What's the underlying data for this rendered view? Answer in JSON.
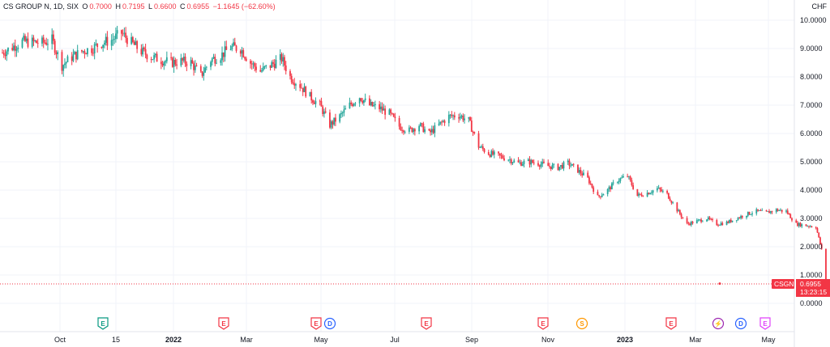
{
  "header": {
    "symbol": "CS GROUP N, 1D, SIX",
    "o_label": "O",
    "o_value": "0.7000",
    "h_label": "H",
    "h_value": "0.7195",
    "l_label": "L",
    "l_value": "0.6600",
    "c_label": "C",
    "c_value": "0.6955",
    "change": "−1.1645 (−62.60%)",
    "currency": "CHF"
  },
  "colors": {
    "up": "#26a69a",
    "down": "#f23645",
    "grid": "#f0f3fa",
    "axis": "#e0e3eb"
  },
  "last_price": {
    "ticker": "CSGN",
    "value": "0.6955",
    "countdown": "13:23:15"
  },
  "chart_data": {
    "type": "candlestick",
    "y_ticks": [
      "10.0000",
      "9.0000",
      "8.0000",
      "7.0000",
      "6.0000",
      "5.0000",
      "4.0000",
      "3.0000",
      "2.0000",
      "1.0000",
      "0.0000"
    ],
    "ylim": [
      0,
      10
    ],
    "x_ticks": [
      "Oct",
      "15",
      "2022",
      "Mar",
      "May",
      "Jul",
      "Sep",
      "Nov",
      "2023",
      "Mar",
      "May"
    ],
    "x_ticks_bold": [
      "2022",
      "2023"
    ],
    "grid": true,
    "price_path": [
      [
        "2021-08-16",
        8.85
      ],
      [
        "2021-08-23",
        9.05
      ],
      [
        "2021-08-30",
        9.25
      ],
      [
        "2021-09-13",
        9.2
      ],
      [
        "2021-09-20",
        9.3
      ],
      [
        "2021-09-27",
        8.4
      ],
      [
        "2021-10-04",
        8.7
      ],
      [
        "2021-10-11",
        8.9
      ],
      [
        "2021-10-18",
        9.0
      ],
      [
        "2021-10-25",
        9.2
      ],
      [
        "2021-11-01",
        9.3
      ],
      [
        "2021-11-08",
        9.55
      ],
      [
        "2021-11-15",
        9.2
      ],
      [
        "2021-11-22",
        8.9
      ],
      [
        "2021-11-29",
        8.7
      ],
      [
        "2021-12-13",
        8.5
      ],
      [
        "2021-12-20",
        8.55
      ],
      [
        "2021-12-27",
        8.5
      ],
      [
        "2022-01-03",
        8.05
      ],
      [
        "2022-01-10",
        8.6
      ],
      [
        "2022-01-17",
        8.75
      ],
      [
        "2022-01-24",
        9.05
      ],
      [
        "2022-01-31",
        9.0
      ],
      [
        "2022-02-07",
        8.5
      ],
      [
        "2022-02-14",
        8.2
      ],
      [
        "2022-02-21",
        8.4
      ],
      [
        "2022-03-01",
        8.65
      ],
      [
        "2022-03-07",
        8.0
      ],
      [
        "2022-03-14",
        7.7
      ],
      [
        "2022-03-21",
        7.3
      ],
      [
        "2022-03-28",
        7.0
      ],
      [
        "2022-04-04",
        6.3
      ],
      [
        "2022-04-11",
        6.6
      ],
      [
        "2022-04-18",
        7.0
      ],
      [
        "2022-04-25",
        7.3
      ],
      [
        "2022-05-02",
        7.0
      ],
      [
        "2022-05-09",
        6.9
      ],
      [
        "2022-05-16",
        6.7
      ],
      [
        "2022-05-23",
        6.25
      ],
      [
        "2022-05-30",
        6.1
      ],
      [
        "2022-06-06",
        6.3
      ],
      [
        "2022-06-13",
        6.0
      ],
      [
        "2022-06-20",
        6.3
      ],
      [
        "2022-06-27",
        6.6
      ],
      [
        "2022-07-04",
        6.65
      ],
      [
        "2022-07-11",
        6.45
      ],
      [
        "2022-07-18",
        5.55
      ],
      [
        "2022-07-25",
        5.3
      ],
      [
        "2022-08-01",
        5.2
      ],
      [
        "2022-08-08",
        5.1
      ],
      [
        "2022-08-15",
        4.95
      ],
      [
        "2022-08-22",
        5.0
      ],
      [
        "2022-08-29",
        4.95
      ],
      [
        "2022-09-05",
        4.85
      ],
      [
        "2022-09-12",
        4.8
      ],
      [
        "2022-09-19",
        4.95
      ],
      [
        "2022-09-26",
        4.7
      ],
      [
        "2022-10-03",
        4.4
      ],
      [
        "2022-10-10",
        3.75
      ],
      [
        "2022-10-17",
        4.0
      ],
      [
        "2022-10-24",
        4.35
      ],
      [
        "2022-10-31",
        4.5
      ],
      [
        "2022-11-07",
        3.8
      ],
      [
        "2022-11-14",
        3.9
      ],
      [
        "2022-11-21",
        4.05
      ],
      [
        "2022-11-28",
        3.85
      ],
      [
        "2022-12-05",
        3.3
      ],
      [
        "2022-12-12",
        2.8
      ],
      [
        "2022-12-19",
        2.9
      ],
      [
        "2022-12-26",
        3.0
      ],
      [
        "2023-01-02",
        2.8
      ],
      [
        "2023-01-09",
        2.85
      ],
      [
        "2023-01-16",
        3.0
      ],
      [
        "2023-01-23",
        3.15
      ],
      [
        "2023-01-30",
        3.25
      ],
      [
        "2023-02-06",
        3.2
      ],
      [
        "2023-02-13",
        3.3
      ],
      [
        "2023-02-20",
        3.25
      ],
      [
        "2023-02-27",
        2.8
      ],
      [
        "2023-03-06",
        2.75
      ],
      [
        "2023-03-13",
        2.7
      ],
      [
        "2023-03-17",
        1.9
      ],
      [
        "2023-03-20",
        0.6955
      ]
    ],
    "last_value": 0.6955,
    "events": [
      {
        "label": "E",
        "color": "#089981"
      },
      {
        "label": "E",
        "color": "#f23645"
      },
      {
        "label": "E",
        "color": "#f23645"
      },
      {
        "label": "D",
        "color": "#2962ff"
      },
      {
        "label": "E",
        "color": "#f23645"
      },
      {
        "label": "E",
        "color": "#f23645"
      },
      {
        "label": "S",
        "color": "#ff9800"
      },
      {
        "label": "E",
        "color": "#f23645"
      },
      {
        "label": "⚡",
        "color": "#9c27b0"
      },
      {
        "label": "D",
        "color": "#2962ff"
      },
      {
        "label": "E",
        "color": "#e040fb"
      }
    ]
  }
}
